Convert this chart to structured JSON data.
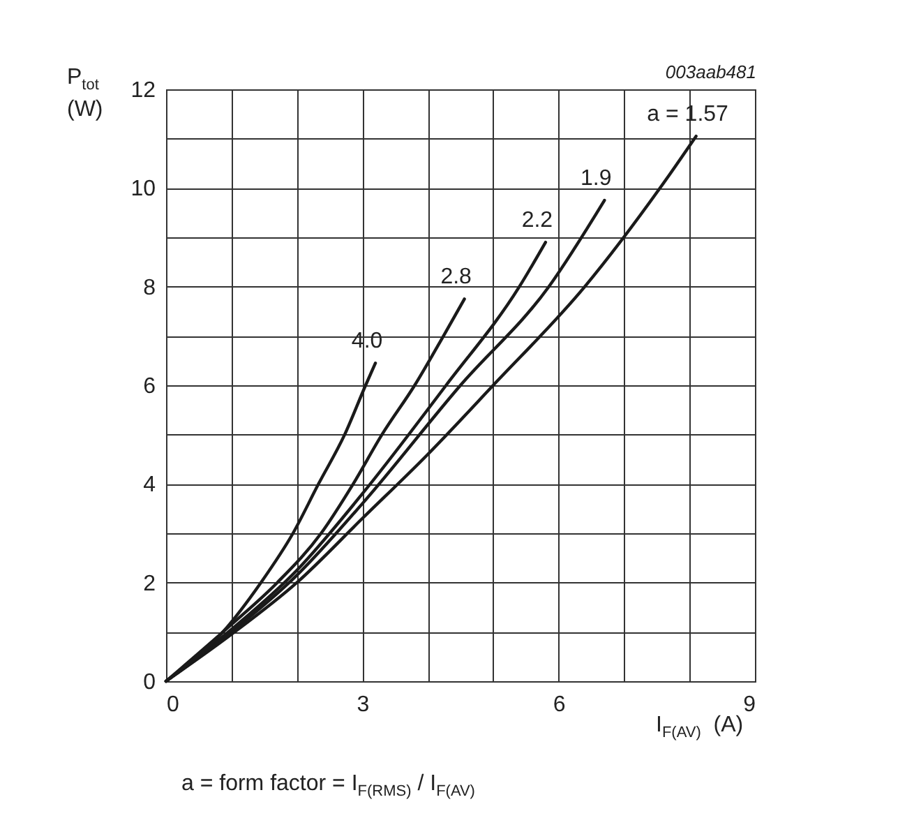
{
  "chart_data": {
    "type": "line",
    "xlabel": "I$_{F(AV)}$  (A)",
    "ylabel": "P$_{tot}$\n(W)",
    "annotations": [
      "003aab481",
      "a = form factor = I$_{F(RMS)}$ / I$_{F(AV)}$"
    ],
    "xlim": [
      0,
      9
    ],
    "ylim": [
      0,
      12
    ],
    "xticks": [
      0,
      {
        "value": 1,
        "label": null
      },
      {
        "value": 2,
        "label": null
      },
      3,
      {
        "value": 4,
        "label": null
      },
      {
        "value": 5,
        "label": null
      },
      6,
      {
        "value": 7,
        "label": null
      },
      {
        "value": 8,
        "label": null
      },
      9
    ],
    "yticks": [
      0,
      {
        "value": 1,
        "label": null
      },
      2,
      {
        "value": 3,
        "label": null
      },
      4,
      {
        "value": 5,
        "label": null
      },
      6,
      {
        "value": 7,
        "label": null
      },
      8,
      {
        "value": 9,
        "label": null
      },
      10,
      {
        "value": 11,
        "label": null
      },
      12
    ],
    "grid": true,
    "legend": false,
    "line_style": "solid",
    "series": [
      {
        "name": "a = 1.57",
        "color": "#1a1a1a",
        "x": [
          0,
          1,
          2,
          3,
          4,
          5,
          6.4,
          7.55,
          8.1
        ],
        "values": [
          0,
          0.95,
          2.0,
          3.3,
          4.6,
          6.0,
          8.0,
          10.0,
          11.05
        ]
      },
      {
        "name": "1.9",
        "color": "#1a1a1a",
        "x": [
          0,
          1,
          2,
          3,
          4.5,
          5.85,
          6.7
        ],
        "values": [
          0,
          1.0,
          2.15,
          3.6,
          6.0,
          8.0,
          9.75
        ]
      },
      {
        "name": "2.2",
        "color": "#1a1a1a",
        "x": [
          0,
          1,
          2,
          3,
          4.28,
          5.4,
          5.8
        ],
        "values": [
          0,
          1.05,
          2.25,
          3.8,
          6.0,
          8.0,
          8.9
        ]
      },
      {
        "name": "2.8",
        "color": "#1a1a1a",
        "x": [
          0,
          1,
          1.7,
          2.37,
          2.86,
          3.3,
          3.8,
          4.24,
          4.56
        ],
        "values": [
          0,
          1.15,
          2.0,
          3.0,
          4.0,
          5.0,
          6.0,
          7.0,
          7.75
        ]
      },
      {
        "name": "4.0",
        "color": "#1a1a1a",
        "x": [
          0,
          0.87,
          1.45,
          1.94,
          2.33,
          2.73,
          3.05,
          3.2
        ],
        "values": [
          0,
          1.0,
          2.0,
          3.0,
          4.0,
          5.0,
          6.0,
          6.45
        ]
      }
    ]
  }
}
